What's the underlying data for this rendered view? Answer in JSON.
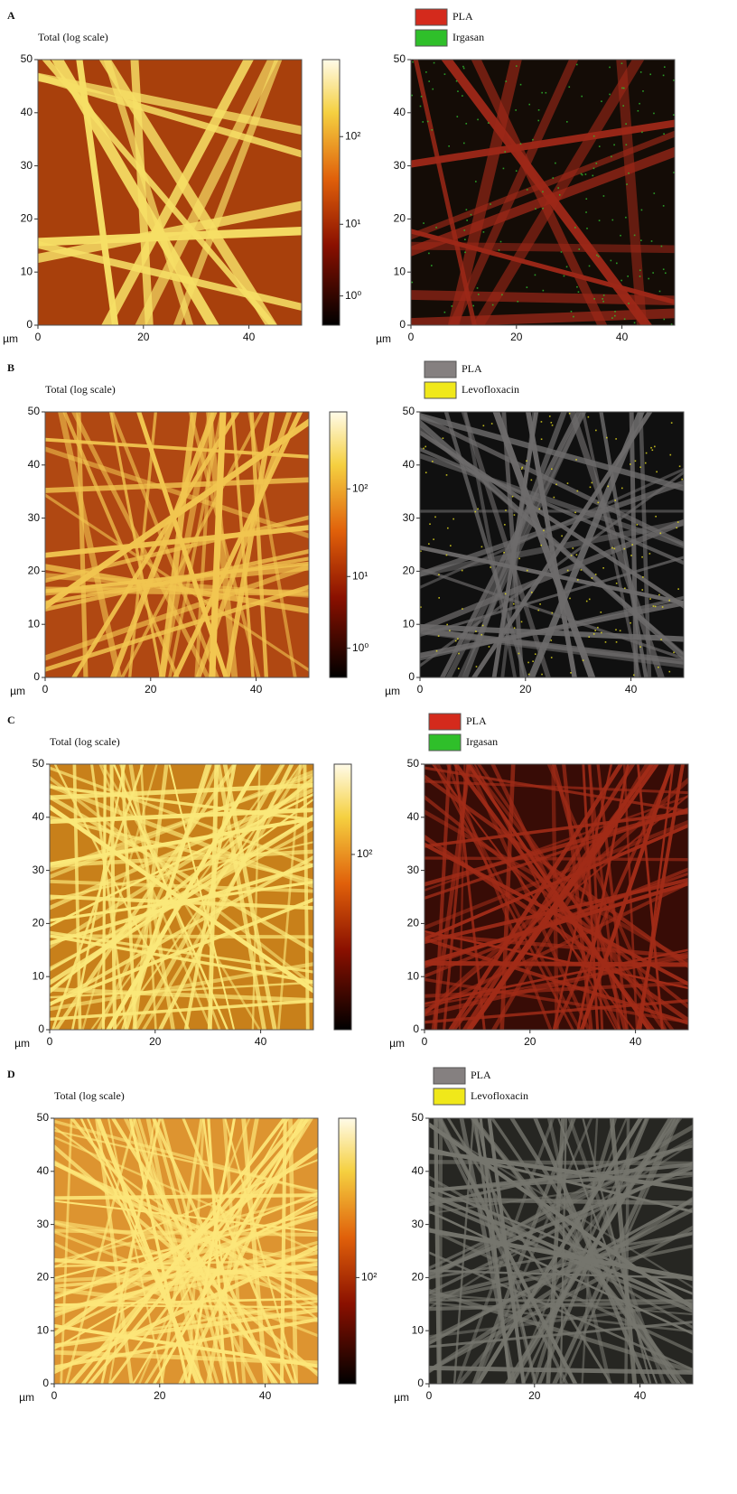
{
  "axes": {
    "unit": "µm",
    "lim": [
      0,
      50
    ],
    "y_ticks": [
      0,
      10,
      20,
      30,
      40,
      50
    ],
    "x_ticks": [
      0,
      20,
      40
    ]
  },
  "panels": [
    {
      "label": "A",
      "title": "Total (log scale)",
      "colorbar_ticks": [
        "10²",
        "10¹",
        "10⁰"
      ],
      "legend": [
        {
          "name": "PLA",
          "color": "#d42a1c"
        },
        {
          "name": "Irgasan",
          "color": "#2fbf2a"
        }
      ]
    },
    {
      "label": "B",
      "title": "Total (log scale)",
      "colorbar_ticks": [
        "10²",
        "10¹",
        "10⁰"
      ],
      "legend": [
        {
          "name": "PLA",
          "color": "#858080"
        },
        {
          "name": "Levofloxacin",
          "color": "#f0e81a"
        }
      ]
    },
    {
      "label": "C",
      "title": "Total (log scale)",
      "colorbar_ticks": [
        "10²"
      ],
      "legend": [
        {
          "name": "PLA",
          "color": "#d42a1c"
        },
        {
          "name": "Irgasan",
          "color": "#2fbf2a"
        }
      ]
    },
    {
      "label": "D",
      "title": "Total (log scale)",
      "colorbar_ticks": [
        "10²"
      ],
      "legend": [
        {
          "name": "PLA",
          "color": "#858080"
        },
        {
          "name": "Levofloxacin",
          "color": "#f0e81a"
        }
      ]
    }
  ]
}
